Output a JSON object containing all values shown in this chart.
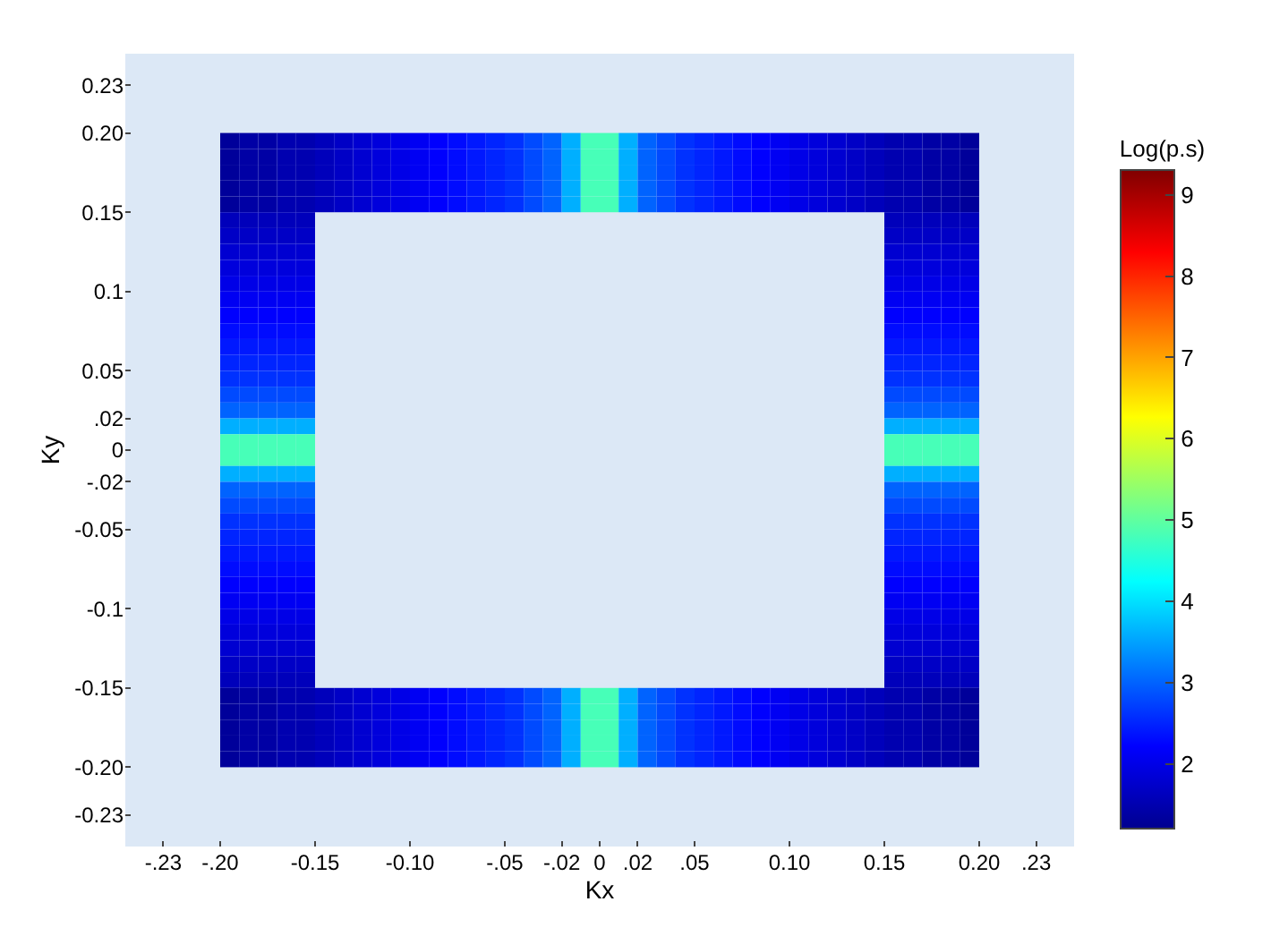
{
  "chart_data": {
    "type": "heatmap",
    "xlabel": "Kx",
    "ylabel": "Ky",
    "clabel": "Log(p.s)",
    "x": [
      -0.195,
      -0.185,
      -0.175,
      -0.165,
      -0.155,
      -0.145,
      -0.135,
      -0.125,
      -0.115,
      -0.105,
      -0.095,
      -0.085,
      -0.075,
      -0.065,
      -0.055,
      -0.045,
      -0.035,
      -0.025,
      -0.015,
      -0.005,
      0.005,
      0.015,
      0.025,
      0.035,
      0.045,
      0.055,
      0.065,
      0.075,
      0.085,
      0.095,
      0.105,
      0.115,
      0.125,
      0.135,
      0.145,
      0.155,
      0.165,
      0.175,
      0.185,
      0.195
    ],
    "y": [
      0.195,
      0.185,
      0.175,
      0.165,
      0.155,
      0.145,
      0.135,
      0.125,
      0.115,
      0.105,
      0.095,
      0.085,
      0.075,
      0.065,
      0.055,
      0.045,
      0.035,
      0.025,
      0.015,
      0.005,
      -0.005,
      -0.015,
      -0.025,
      -0.035,
      -0.045,
      -0.055,
      -0.065,
      -0.075,
      -0.085,
      -0.095,
      -0.105,
      -0.115,
      -0.125,
      -0.135,
      -0.145,
      -0.155,
      -0.165,
      -0.175,
      -0.185,
      -0.195
    ],
    "cells": [
      [
        1.3,
        1.4,
        1.4,
        1.5,
        1.5,
        1.6,
        1.7,
        1.8,
        1.9,
        2.0,
        2.1,
        2.2,
        2.3,
        2.4,
        2.5,
        2.6,
        2.8,
        3.0,
        3.6,
        4.8,
        4.8,
        3.6,
        3.0,
        2.8,
        2.6,
        2.5,
        2.4,
        2.3,
        2.2,
        2.1,
        2.0,
        1.9,
        1.8,
        1.7,
        1.6,
        1.5,
        1.5,
        1.4,
        1.4,
        1.3
      ],
      [
        1.3,
        1.4,
        1.4,
        1.5,
        1.5,
        1.6,
        1.7,
        1.8,
        1.9,
        2.0,
        2.1,
        2.2,
        2.3,
        2.4,
        2.5,
        2.6,
        2.8,
        3.0,
        3.6,
        4.8,
        4.8,
        3.6,
        3.0,
        2.8,
        2.6,
        2.5,
        2.4,
        2.3,
        2.2,
        2.1,
        2.0,
        1.9,
        1.8,
        1.7,
        1.6,
        1.5,
        1.5,
        1.4,
        1.4,
        1.3
      ],
      [
        1.3,
        1.4,
        1.4,
        1.5,
        1.5,
        1.6,
        1.7,
        1.8,
        1.9,
        2.0,
        2.1,
        2.2,
        2.3,
        2.4,
        2.5,
        2.6,
        2.8,
        3.0,
        3.6,
        4.8,
        4.8,
        3.6,
        3.0,
        2.8,
        2.6,
        2.5,
        2.4,
        2.3,
        2.2,
        2.1,
        2.0,
        1.9,
        1.8,
        1.7,
        1.6,
        1.5,
        1.5,
        1.4,
        1.4,
        1.3
      ],
      [
        1.3,
        1.4,
        1.4,
        1.5,
        1.5,
        1.6,
        1.7,
        1.8,
        1.9,
        2.0,
        2.1,
        2.2,
        2.3,
        2.4,
        2.5,
        2.6,
        2.8,
        3.0,
        3.6,
        4.8,
        4.8,
        3.6,
        3.0,
        2.8,
        2.6,
        2.5,
        2.4,
        2.3,
        2.2,
        2.1,
        2.0,
        1.9,
        1.8,
        1.7,
        1.6,
        1.5,
        1.5,
        1.4,
        1.4,
        1.3
      ],
      [
        1.3,
        1.4,
        1.4,
        1.5,
        1.5,
        1.6,
        1.7,
        1.8,
        1.9,
        2.0,
        2.1,
        2.2,
        2.3,
        2.4,
        2.5,
        2.6,
        2.8,
        3.0,
        3.6,
        4.8,
        4.8,
        3.6,
        3.0,
        2.8,
        2.6,
        2.5,
        2.4,
        2.3,
        2.2,
        2.1,
        2.0,
        1.9,
        1.8,
        1.7,
        1.6,
        1.5,
        1.5,
        1.4,
        1.4,
        1.3
      ],
      [
        1.6,
        1.6,
        1.6,
        1.6,
        1.6,
        null,
        null,
        null,
        null,
        null,
        null,
        null,
        null,
        null,
        null,
        null,
        null,
        null,
        null,
        null,
        null,
        null,
        null,
        null,
        null,
        null,
        null,
        null,
        null,
        null,
        null,
        null,
        null,
        null,
        null,
        1.6,
        1.6,
        1.6,
        1.6,
        1.6
      ],
      [
        1.7,
        1.7,
        1.7,
        1.7,
        1.7,
        null,
        null,
        null,
        null,
        null,
        null,
        null,
        null,
        null,
        null,
        null,
        null,
        null,
        null,
        null,
        null,
        null,
        null,
        null,
        null,
        null,
        null,
        null,
        null,
        null,
        null,
        null,
        null,
        null,
        null,
        1.7,
        1.7,
        1.7,
        1.7,
        1.7
      ],
      [
        1.8,
        1.8,
        1.8,
        1.8,
        1.8,
        null,
        null,
        null,
        null,
        null,
        null,
        null,
        null,
        null,
        null,
        null,
        null,
        null,
        null,
        null,
        null,
        null,
        null,
        null,
        null,
        null,
        null,
        null,
        null,
        null,
        null,
        null,
        null,
        null,
        null,
        1.8,
        1.8,
        1.8,
        1.8,
        1.8
      ],
      [
        1.9,
        1.9,
        1.9,
        1.9,
        1.9,
        null,
        null,
        null,
        null,
        null,
        null,
        null,
        null,
        null,
        null,
        null,
        null,
        null,
        null,
        null,
        null,
        null,
        null,
        null,
        null,
        null,
        null,
        null,
        null,
        null,
        null,
        null,
        null,
        null,
        null,
        1.9,
        1.9,
        1.9,
        1.9,
        1.9
      ],
      [
        2.0,
        2.0,
        2.0,
        2.0,
        2.0,
        null,
        null,
        null,
        null,
        null,
        null,
        null,
        null,
        null,
        null,
        null,
        null,
        null,
        null,
        null,
        null,
        null,
        null,
        null,
        null,
        null,
        null,
        null,
        null,
        null,
        null,
        null,
        null,
        null,
        null,
        2.0,
        2.0,
        2.0,
        2.0,
        2.0
      ],
      [
        2.1,
        2.1,
        2.1,
        2.1,
        2.1,
        null,
        null,
        null,
        null,
        null,
        null,
        null,
        null,
        null,
        null,
        null,
        null,
        null,
        null,
        null,
        null,
        null,
        null,
        null,
        null,
        null,
        null,
        null,
        null,
        null,
        null,
        null,
        null,
        null,
        null,
        2.1,
        2.1,
        2.1,
        2.1,
        2.1
      ],
      [
        2.2,
        2.2,
        2.2,
        2.2,
        2.2,
        null,
        null,
        null,
        null,
        null,
        null,
        null,
        null,
        null,
        null,
        null,
        null,
        null,
        null,
        null,
        null,
        null,
        null,
        null,
        null,
        null,
        null,
        null,
        null,
        null,
        null,
        null,
        null,
        null,
        null,
        2.2,
        2.2,
        2.2,
        2.2,
        2.2
      ],
      [
        2.3,
        2.3,
        2.3,
        2.3,
        2.3,
        null,
        null,
        null,
        null,
        null,
        null,
        null,
        null,
        null,
        null,
        null,
        null,
        null,
        null,
        null,
        null,
        null,
        null,
        null,
        null,
        null,
        null,
        null,
        null,
        null,
        null,
        null,
        null,
        null,
        null,
        2.3,
        2.3,
        2.3,
        2.3,
        2.3
      ],
      [
        2.4,
        2.4,
        2.4,
        2.4,
        2.4,
        null,
        null,
        null,
        null,
        null,
        null,
        null,
        null,
        null,
        null,
        null,
        null,
        null,
        null,
        null,
        null,
        null,
        null,
        null,
        null,
        null,
        null,
        null,
        null,
        null,
        null,
        null,
        null,
        null,
        null,
        2.4,
        2.4,
        2.4,
        2.4,
        2.4
      ],
      [
        2.5,
        2.5,
        2.5,
        2.5,
        2.5,
        null,
        null,
        null,
        null,
        null,
        null,
        null,
        null,
        null,
        null,
        null,
        null,
        null,
        null,
        null,
        null,
        null,
        null,
        null,
        null,
        null,
        null,
        null,
        null,
        null,
        null,
        null,
        null,
        null,
        null,
        2.5,
        2.5,
        2.5,
        2.5,
        2.5
      ],
      [
        2.6,
        2.6,
        2.6,
        2.6,
        2.6,
        null,
        null,
        null,
        null,
        null,
        null,
        null,
        null,
        null,
        null,
        null,
        null,
        null,
        null,
        null,
        null,
        null,
        null,
        null,
        null,
        null,
        null,
        null,
        null,
        null,
        null,
        null,
        null,
        null,
        null,
        2.6,
        2.6,
        2.6,
        2.6,
        2.6
      ],
      [
        2.8,
        2.8,
        2.8,
        2.8,
        2.8,
        null,
        null,
        null,
        null,
        null,
        null,
        null,
        null,
        null,
        null,
        null,
        null,
        null,
        null,
        null,
        null,
        null,
        null,
        null,
        null,
        null,
        null,
        null,
        null,
        null,
        null,
        null,
        null,
        null,
        null,
        2.8,
        2.8,
        2.8,
        2.8,
        2.8
      ],
      [
        3.0,
        3.0,
        3.0,
        3.0,
        3.0,
        null,
        null,
        null,
        null,
        null,
        null,
        null,
        null,
        null,
        null,
        null,
        null,
        null,
        null,
        null,
        null,
        null,
        null,
        null,
        null,
        null,
        null,
        null,
        null,
        null,
        null,
        null,
        null,
        null,
        null,
        3.0,
        3.0,
        3.0,
        3.0,
        3.0
      ],
      [
        3.6,
        3.6,
        3.6,
        3.6,
        3.6,
        null,
        null,
        null,
        null,
        null,
        null,
        null,
        null,
        null,
        null,
        null,
        null,
        null,
        null,
        null,
        null,
        null,
        null,
        null,
        null,
        null,
        null,
        null,
        null,
        null,
        null,
        null,
        null,
        null,
        null,
        3.6,
        3.6,
        3.6,
        3.6,
        3.6
      ],
      [
        4.8,
        4.8,
        4.8,
        4.8,
        4.8,
        null,
        null,
        null,
        null,
        null,
        null,
        null,
        null,
        null,
        null,
        null,
        null,
        null,
        null,
        null,
        null,
        null,
        null,
        null,
        null,
        null,
        null,
        null,
        null,
        null,
        null,
        null,
        null,
        null,
        null,
        4.8,
        4.8,
        4.8,
        4.8,
        4.8
      ],
      [
        4.8,
        4.8,
        4.8,
        4.8,
        4.8,
        null,
        null,
        null,
        null,
        null,
        null,
        null,
        null,
        null,
        null,
        null,
        null,
        null,
        null,
        null,
        null,
        null,
        null,
        null,
        null,
        null,
        null,
        null,
        null,
        null,
        null,
        null,
        null,
        null,
        null,
        4.8,
        4.8,
        4.8,
        4.8,
        4.8
      ],
      [
        3.6,
        3.6,
        3.6,
        3.6,
        3.6,
        null,
        null,
        null,
        null,
        null,
        null,
        null,
        null,
        null,
        null,
        null,
        null,
        null,
        null,
        null,
        null,
        null,
        null,
        null,
        null,
        null,
        null,
        null,
        null,
        null,
        null,
        null,
        null,
        null,
        null,
        3.6,
        3.6,
        3.6,
        3.6,
        3.6
      ],
      [
        3.0,
        3.0,
        3.0,
        3.0,
        3.0,
        null,
        null,
        null,
        null,
        null,
        null,
        null,
        null,
        null,
        null,
        null,
        null,
        null,
        null,
        null,
        null,
        null,
        null,
        null,
        null,
        null,
        null,
        null,
        null,
        null,
        null,
        null,
        null,
        null,
        null,
        3.0,
        3.0,
        3.0,
        3.0,
        3.0
      ],
      [
        2.8,
        2.8,
        2.8,
        2.8,
        2.8,
        null,
        null,
        null,
        null,
        null,
        null,
        null,
        null,
        null,
        null,
        null,
        null,
        null,
        null,
        null,
        null,
        null,
        null,
        null,
        null,
        null,
        null,
        null,
        null,
        null,
        null,
        null,
        null,
        null,
        null,
        2.8,
        2.8,
        2.8,
        2.8,
        2.8
      ],
      [
        2.6,
        2.6,
        2.6,
        2.6,
        2.6,
        null,
        null,
        null,
        null,
        null,
        null,
        null,
        null,
        null,
        null,
        null,
        null,
        null,
        null,
        null,
        null,
        null,
        null,
        null,
        null,
        null,
        null,
        null,
        null,
        null,
        null,
        null,
        null,
        null,
        null,
        2.6,
        2.6,
        2.6,
        2.6,
        2.6
      ],
      [
        2.5,
        2.5,
        2.5,
        2.5,
        2.5,
        null,
        null,
        null,
        null,
        null,
        null,
        null,
        null,
        null,
        null,
        null,
        null,
        null,
        null,
        null,
        null,
        null,
        null,
        null,
        null,
        null,
        null,
        null,
        null,
        null,
        null,
        null,
        null,
        null,
        null,
        2.5,
        2.5,
        2.5,
        2.5,
        2.5
      ],
      [
        2.4,
        2.4,
        2.4,
        2.4,
        2.4,
        null,
        null,
        null,
        null,
        null,
        null,
        null,
        null,
        null,
        null,
        null,
        null,
        null,
        null,
        null,
        null,
        null,
        null,
        null,
        null,
        null,
        null,
        null,
        null,
        null,
        null,
        null,
        null,
        null,
        null,
        2.4,
        2.4,
        2.4,
        2.4,
        2.4
      ],
      [
        2.3,
        2.3,
        2.3,
        2.3,
        2.3,
        null,
        null,
        null,
        null,
        null,
        null,
        null,
        null,
        null,
        null,
        null,
        null,
        null,
        null,
        null,
        null,
        null,
        null,
        null,
        null,
        null,
        null,
        null,
        null,
        null,
        null,
        null,
        null,
        null,
        null,
        2.3,
        2.3,
        2.3,
        2.3,
        2.3
      ],
      [
        2.2,
        2.2,
        2.2,
        2.2,
        2.2,
        null,
        null,
        null,
        null,
        null,
        null,
        null,
        null,
        null,
        null,
        null,
        null,
        null,
        null,
        null,
        null,
        null,
        null,
        null,
        null,
        null,
        null,
        null,
        null,
        null,
        null,
        null,
        null,
        null,
        null,
        2.2,
        2.2,
        2.2,
        2.2,
        2.2
      ],
      [
        2.1,
        2.1,
        2.1,
        2.1,
        2.1,
        null,
        null,
        null,
        null,
        null,
        null,
        null,
        null,
        null,
        null,
        null,
        null,
        null,
        null,
        null,
        null,
        null,
        null,
        null,
        null,
        null,
        null,
        null,
        null,
        null,
        null,
        null,
        null,
        null,
        null,
        2.1,
        2.1,
        2.1,
        2.1,
        2.1
      ],
      [
        2.0,
        2.0,
        2.0,
        2.0,
        2.0,
        null,
        null,
        null,
        null,
        null,
        null,
        null,
        null,
        null,
        null,
        null,
        null,
        null,
        null,
        null,
        null,
        null,
        null,
        null,
        null,
        null,
        null,
        null,
        null,
        null,
        null,
        null,
        null,
        null,
        null,
        2.0,
        2.0,
        2.0,
        2.0,
        2.0
      ],
      [
        1.9,
        1.9,
        1.9,
        1.9,
        1.9,
        null,
        null,
        null,
        null,
        null,
        null,
        null,
        null,
        null,
        null,
        null,
        null,
        null,
        null,
        null,
        null,
        null,
        null,
        null,
        null,
        null,
        null,
        null,
        null,
        null,
        null,
        null,
        null,
        null,
        null,
        1.9,
        1.9,
        1.9,
        1.9,
        1.9
      ],
      [
        1.8,
        1.8,
        1.8,
        1.8,
        1.8,
        null,
        null,
        null,
        null,
        null,
        null,
        null,
        null,
        null,
        null,
        null,
        null,
        null,
        null,
        null,
        null,
        null,
        null,
        null,
        null,
        null,
        null,
        null,
        null,
        null,
        null,
        null,
        null,
        null,
        null,
        1.8,
        1.8,
        1.8,
        1.8,
        1.8
      ],
      [
        1.7,
        1.7,
        1.7,
        1.7,
        1.7,
        null,
        null,
        null,
        null,
        null,
        null,
        null,
        null,
        null,
        null,
        null,
        null,
        null,
        null,
        null,
        null,
        null,
        null,
        null,
        null,
        null,
        null,
        null,
        null,
        null,
        null,
        null,
        null,
        null,
        null,
        1.7,
        1.7,
        1.7,
        1.7,
        1.7
      ],
      [
        1.6,
        1.6,
        1.6,
        1.6,
        1.6,
        null,
        null,
        null,
        null,
        null,
        null,
        null,
        null,
        null,
        null,
        null,
        null,
        null,
        null,
        null,
        null,
        null,
        null,
        null,
        null,
        null,
        null,
        null,
        null,
        null,
        null,
        null,
        null,
        null,
        null,
        1.6,
        1.6,
        1.6,
        1.6,
        1.6
      ],
      [
        1.3,
        1.4,
        1.4,
        1.5,
        1.5,
        1.6,
        1.7,
        1.8,
        1.9,
        2.0,
        2.1,
        2.2,
        2.3,
        2.4,
        2.5,
        2.6,
        2.8,
        3.0,
        3.6,
        4.8,
        4.8,
        3.6,
        3.0,
        2.8,
        2.6,
        2.5,
        2.4,
        2.3,
        2.2,
        2.1,
        2.0,
        1.9,
        1.8,
        1.7,
        1.6,
        1.5,
        1.5,
        1.4,
        1.4,
        1.3
      ],
      [
        1.3,
        1.4,
        1.4,
        1.5,
        1.5,
        1.6,
        1.7,
        1.8,
        1.9,
        2.0,
        2.1,
        2.2,
        2.3,
        2.4,
        2.5,
        2.6,
        2.8,
        3.0,
        3.6,
        4.8,
        4.8,
        3.6,
        3.0,
        2.8,
        2.6,
        2.5,
        2.4,
        2.3,
        2.2,
        2.1,
        2.0,
        1.9,
        1.8,
        1.7,
        1.6,
        1.5,
        1.5,
        1.4,
        1.4,
        1.3
      ],
      [
        1.3,
        1.4,
        1.4,
        1.5,
        1.5,
        1.6,
        1.7,
        1.8,
        1.9,
        2.0,
        2.1,
        2.2,
        2.3,
        2.4,
        2.5,
        2.6,
        2.8,
        3.0,
        3.6,
        4.8,
        4.8,
        3.6,
        3.0,
        2.8,
        2.6,
        2.5,
        2.4,
        2.3,
        2.2,
        2.1,
        2.0,
        1.9,
        1.8,
        1.7,
        1.6,
        1.5,
        1.5,
        1.4,
        1.4,
        1.3
      ],
      [
        1.3,
        1.4,
        1.4,
        1.5,
        1.5,
        1.6,
        1.7,
        1.8,
        1.9,
        2.0,
        2.1,
        2.2,
        2.3,
        2.4,
        2.5,
        2.6,
        2.8,
        3.0,
        3.6,
        4.8,
        4.8,
        3.6,
        3.0,
        2.8,
        2.6,
        2.5,
        2.4,
        2.3,
        2.2,
        2.1,
        2.0,
        1.9,
        1.8,
        1.7,
        1.6,
        1.5,
        1.5,
        1.4,
        1.4,
        1.3
      ],
      [
        1.3,
        1.4,
        1.4,
        1.5,
        1.5,
        1.6,
        1.7,
        1.8,
        1.9,
        2.0,
        2.1,
        2.2,
        2.3,
        2.4,
        2.5,
        2.6,
        2.8,
        3.0,
        3.6,
        4.8,
        4.8,
        3.6,
        3.0,
        2.8,
        2.6,
        2.5,
        2.4,
        2.3,
        2.2,
        2.1,
        2.0,
        1.9,
        1.8,
        1.7,
        1.6,
        1.5,
        1.5,
        1.4,
        1.4,
        1.3
      ]
    ],
    "xlim": [
      -0.25,
      0.25
    ],
    "ylim": [
      -0.25,
      0.25
    ],
    "xticks": [
      {
        "value": -0.23,
        "label": "-.23"
      },
      {
        "value": -0.2,
        "label": "-.20"
      },
      {
        "value": -0.15,
        "label": "-0.15"
      },
      {
        "value": -0.1,
        "label": "-0.10"
      },
      {
        "value": -0.05,
        "label": "-.05"
      },
      {
        "value": -0.02,
        "label": "-.02"
      },
      0,
      {
        "value": 0.02,
        "label": ".02"
      },
      {
        "value": 0.05,
        "label": ".05"
      },
      {
        "value": 0.1,
        "label": "0.10"
      },
      {
        "value": 0.15,
        "label": "0.15"
      },
      {
        "value": 0.2,
        "label": "0.20"
      },
      {
        "value": 0.23,
        "label": ".23"
      }
    ],
    "yticks": [
      {
        "value": -0.23,
        "label": "-0.23"
      },
      {
        "value": -0.2,
        "label": "-0.20"
      },
      -0.15,
      -0.1,
      -0.05,
      {
        "value": -0.02,
        "label": "-.02"
      },
      0,
      {
        "value": 0.02,
        "label": ".02"
      },
      0.05,
      0.1,
      0.15,
      {
        "value": 0.2,
        "label": "0.20"
      },
      0.23
    ],
    "clim": [
      1.2,
      9.3
    ],
    "cticks": [
      2,
      3,
      4,
      5,
      6,
      7,
      8,
      9
    ],
    "grid": false
  }
}
